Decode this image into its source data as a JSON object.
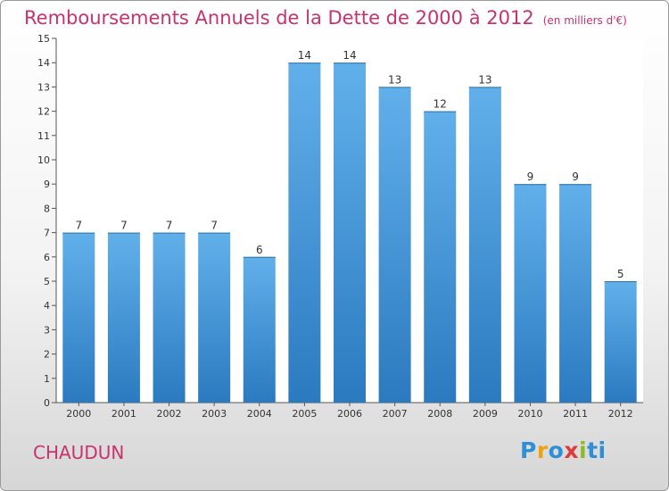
{
  "title": "Remboursements Annuels de la Dette de 2000 à 2012",
  "unit": "(en milliers d'€)",
  "commune": "CHAUDUN",
  "logo": {
    "letters": [
      "P",
      "r",
      "o",
      "x",
      "i",
      "ti"
    ],
    "colors": [
      "#2d8fd6",
      "#f0a20c",
      "#2d8fd6",
      "#e23a3a",
      "#8cbb27",
      "#2d8fd6"
    ]
  },
  "chart_data": {
    "type": "bar",
    "categories": [
      "2000",
      "2001",
      "2002",
      "2003",
      "2004",
      "2005",
      "2006",
      "2007",
      "2008",
      "2009",
      "2010",
      "2011",
      "2012"
    ],
    "values": [
      7,
      7,
      7,
      7,
      6,
      14,
      14,
      13,
      12,
      13,
      9,
      9,
      5
    ],
    "y_ticks": [
      0,
      1,
      2,
      3,
      4,
      5,
      6,
      7,
      8,
      9,
      10,
      11,
      12,
      13,
      14,
      15
    ],
    "ylim": [
      0,
      15
    ],
    "grid": false,
    "bar_color_top": "#62b0ea",
    "bar_color_bottom": "#2b7ac0"
  }
}
